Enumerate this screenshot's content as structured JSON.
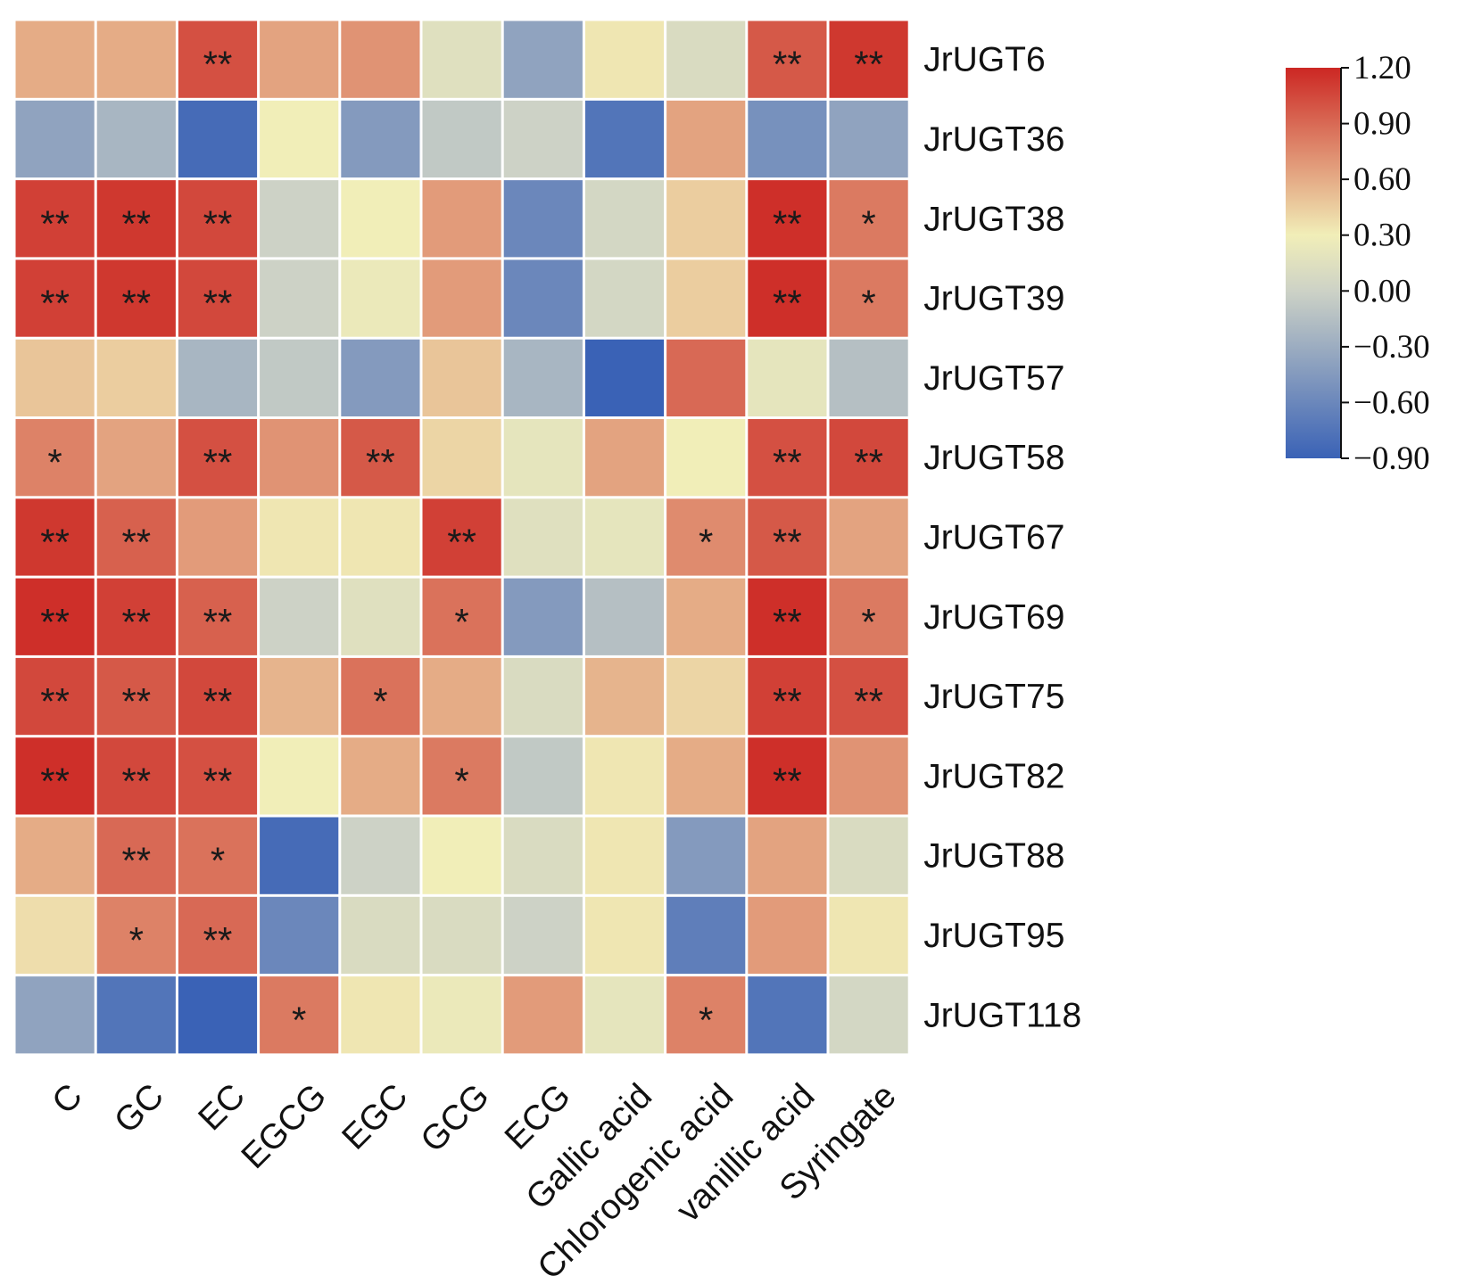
{
  "chart_data": {
    "type": "heatmap",
    "title": "",
    "rows": [
      "JrUGT6",
      "JrUGT36",
      "JrUGT38",
      "JrUGT39",
      "JrUGT57",
      "JrUGT58",
      "JrUGT67",
      "JrUGT69",
      "JrUGT75",
      "JrUGT82",
      "JrUGT88",
      "JrUGT95",
      "JrUGT118"
    ],
    "columns": [
      "C",
      "GC",
      "EC",
      "EGCG",
      "EGC",
      "GCG",
      "ECG",
      "Gallic acid",
      "Chlorogenic acid",
      "vanillic acid",
      "Syringate"
    ],
    "values": [
      [
        0.4,
        0.4,
        0.95,
        0.45,
        0.55,
        -0.15,
        -0.55,
        0.05,
        -0.2,
        0.9,
        1.1
      ],
      [
        -0.55,
        -0.45,
        -0.85,
        0.0,
        -0.6,
        -0.35,
        -0.3,
        -0.8,
        0.45,
        -0.65,
        -0.55
      ],
      [
        1.05,
        1.1,
        1.0,
        -0.3,
        0.0,
        0.5,
        -0.7,
        -0.25,
        0.2,
        1.15,
        0.7
      ],
      [
        1.05,
        1.1,
        1.0,
        -0.3,
        -0.05,
        0.5,
        -0.7,
        -0.25,
        0.2,
        1.15,
        0.7
      ],
      [
        0.25,
        0.2,
        -0.45,
        -0.35,
        -0.6,
        0.25,
        -0.45,
        -0.9,
        0.8,
        -0.1,
        -0.4
      ],
      [
        0.65,
        0.45,
        0.95,
        0.55,
        0.9,
        0.15,
        -0.1,
        0.45,
        0.0,
        0.95,
        1.0
      ],
      [
        1.1,
        0.85,
        0.5,
        0.05,
        0.05,
        1.05,
        -0.15,
        -0.1,
        0.6,
        0.9,
        0.45
      ],
      [
        1.15,
        1.05,
        0.85,
        -0.3,
        -0.15,
        0.75,
        -0.6,
        -0.4,
        0.4,
        1.15,
        0.7
      ],
      [
        1.0,
        0.9,
        1.0,
        0.35,
        0.75,
        0.4,
        -0.2,
        0.35,
        0.15,
        1.05,
        0.95
      ],
      [
        1.15,
        1.0,
        0.95,
        0.0,
        0.4,
        0.7,
        -0.35,
        0.05,
        0.4,
        1.15,
        0.55
      ],
      [
        0.4,
        0.8,
        0.75,
        -0.85,
        -0.3,
        0.0,
        -0.2,
        0.05,
        -0.6,
        0.45,
        -0.2
      ],
      [
        0.1,
        0.65,
        0.8,
        -0.7,
        -0.2,
        -0.2,
        -0.3,
        0.05,
        -0.75,
        0.5,
        0.05
      ],
      [
        -0.55,
        -0.8,
        -0.9,
        0.7,
        0.05,
        -0.05,
        0.5,
        -0.1,
        0.65,
        -0.8,
        -0.25
      ]
    ],
    "significance": [
      [
        "",
        "",
        "**",
        "",
        "",
        "",
        "",
        "",
        "",
        "**",
        "**"
      ],
      [
        "",
        "",
        "",
        "",
        "",
        "",
        "",
        "",
        "",
        "",
        ""
      ],
      [
        "**",
        "**",
        "**",
        "",
        "",
        "",
        "",
        "",
        "",
        "**",
        "*"
      ],
      [
        "**",
        "**",
        "**",
        "",
        "",
        "",
        "",
        "",
        "",
        "**",
        "*"
      ],
      [
        "",
        "",
        "",
        "",
        "",
        "",
        "",
        "",
        "",
        "",
        ""
      ],
      [
        "*",
        "",
        "**",
        "",
        "**",
        "",
        "",
        "",
        "",
        "**",
        "**"
      ],
      [
        "**",
        "**",
        "",
        "",
        "",
        "**",
        "",
        "",
        "*",
        "**",
        ""
      ],
      [
        "**",
        "**",
        "**",
        "",
        "",
        "*",
        "",
        "",
        "",
        "**",
        "*"
      ],
      [
        "**",
        "**",
        "**",
        "",
        "*",
        "",
        "",
        "",
        "",
        "**",
        "**"
      ],
      [
        "**",
        "**",
        "**",
        "",
        "",
        "*",
        "",
        "",
        "",
        "**",
        ""
      ],
      [
        "",
        "**",
        "*",
        "",
        "",
        "",
        "",
        "",
        "",
        "",
        ""
      ],
      [
        "",
        "*",
        "**",
        "",
        "",
        "",
        "",
        "",
        "",
        "",
        ""
      ],
      [
        "",
        "",
        "",
        "*",
        "",
        "",
        "",
        "",
        "*",
        "",
        ""
      ]
    ],
    "colorbar": {
      "min": -0.9,
      "max": 1.2,
      "ticks": [
        1.2,
        0.9,
        0.6,
        0.3,
        0.0,
        -0.3,
        -0.6,
        -0.9
      ],
      "tick_labels": [
        "1.20",
        "0.90",
        "0.60",
        "0.30",
        "0.00",
        "−0.30",
        "−0.60",
        "−0.90"
      ],
      "colors": [
        "#3a62b6",
        "#cdd2c6",
        "#f1eeb8",
        "#cc2723"
      ],
      "position": "right"
    },
    "xlabel": "",
    "ylabel": ""
  }
}
